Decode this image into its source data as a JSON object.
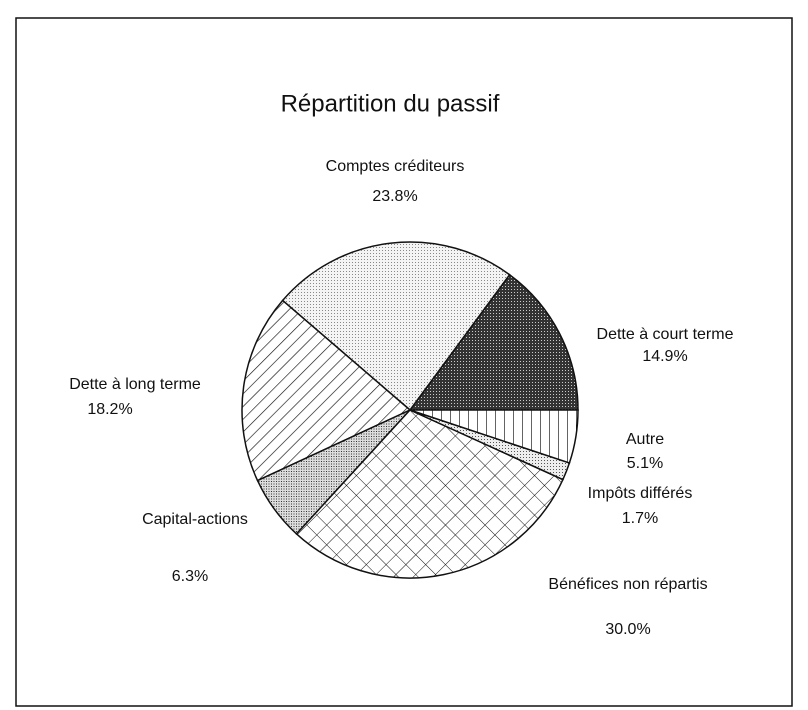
{
  "chart_data": {
    "type": "pie",
    "title": "Répartition du passif",
    "categories": [
      "Dette à court terme",
      "Comptes créditeurs",
      "Dette à long terme",
      "Capital-actions",
      "Bénéfices non répartis",
      "Impôts différés",
      "Autre"
    ],
    "values": [
      14.9,
      23.8,
      18.2,
      6.3,
      30.0,
      1.7,
      5.1
    ],
    "value_labels": [
      "14.9%",
      "23.8%",
      "18.2%",
      "6.3%",
      "30.0%",
      "1.7%",
      "5.1%"
    ]
  }
}
